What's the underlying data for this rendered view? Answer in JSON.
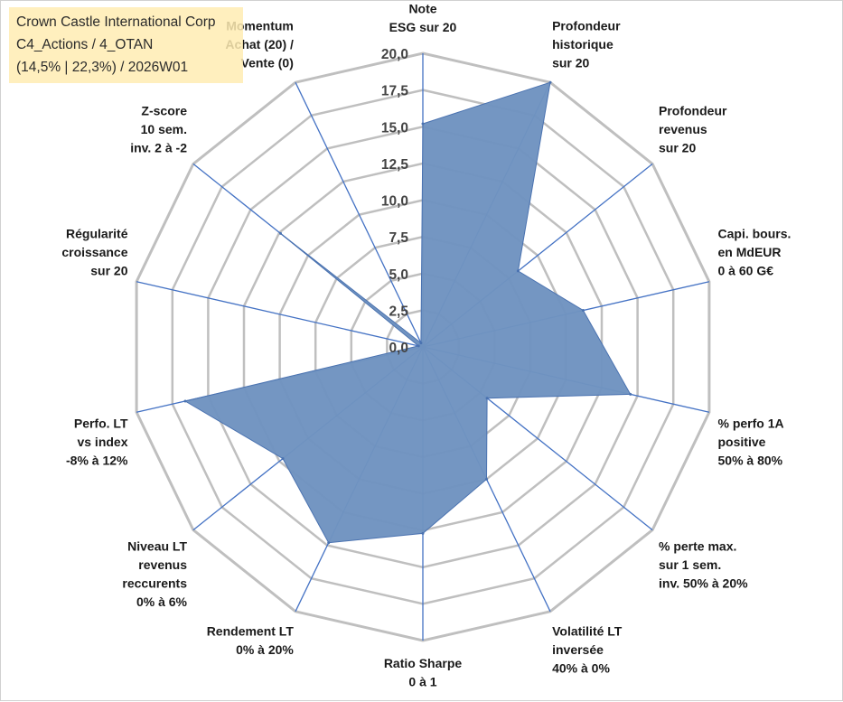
{
  "title_box": {
    "line1": "Crown Castle International Corp",
    "line2": "C4_Actions / 4_OTAN",
    "line3": "(14,5% | 22,3%) / 2026W01"
  },
  "colors": {
    "fill": "#6f93c0",
    "stroke": "#4a72b0",
    "axis": "#4472c4",
    "grid": "#bfbfbf",
    "title_bg": "#ffecb3"
  },
  "chart_data": {
    "type": "radar",
    "title": "Crown Castle International Corp",
    "rlim": [
      0,
      20
    ],
    "ticks": [
      0,
      2.5,
      5,
      7.5,
      10,
      12.5,
      15,
      17.5,
      20
    ],
    "tick_labels": [
      "0,0",
      "2,5",
      "5,0",
      "7,5",
      "10,0",
      "12,5",
      "15,0",
      "17,5",
      "20,0"
    ],
    "axes": [
      {
        "name": "Note ESG sur 20",
        "lines": [
          "Note",
          "ESG sur 20"
        ],
        "value": 15.2
      },
      {
        "name": "Profondeur historique sur 20",
        "lines": [
          "Profondeur",
          "historique",
          "sur 20"
        ],
        "value": 20.0
      },
      {
        "name": "Profondeur revenus sur 20",
        "lines": [
          "Profondeur",
          "revenus",
          "sur 20"
        ],
        "value": 8.3
      },
      {
        "name": "Capi. bours. en MdEUR 0 à 60 G€",
        "lines": [
          "Capi. bours.",
          "en MdEUR",
          "0 à 60 G€"
        ],
        "value": 11.2
      },
      {
        "name": "% perfo 1A positive 50% à 80%",
        "lines": [
          "% perfo 1A",
          "positive",
          "50% à 80%"
        ],
        "value": 14.5
      },
      {
        "name": "% perte max. sur 1 sem. inv. 50% à 20%",
        "lines": [
          "% perte max.",
          "sur 1 sem.",
          "inv. 50% à 20%"
        ],
        "value": 5.6
      },
      {
        "name": "Volatilité LT inversée 40% à 0%",
        "lines": [
          "Volatilité LT",
          "inversée",
          "40% à 0%"
        ],
        "value": 10.0
      },
      {
        "name": "Ratio Sharpe 0 à 1",
        "lines": [
          "Ratio Sharpe",
          "0 à 1"
        ],
        "value": 12.7
      },
      {
        "name": "Rendement LT 0% à 20%",
        "lines": [
          "Rendement LT",
          "0% à 20%"
        ],
        "value": 14.8
      },
      {
        "name": "Niveau LT revenus reccurents 0% à 6%",
        "lines": [
          "Niveau LT",
          "revenus",
          "reccurents",
          "0% à 6%"
        ],
        "value": 12.2
      },
      {
        "name": "Perfo. LT vs index -8% à 12%",
        "lines": [
          "Perfo. LT",
          "vs index",
          "-8% à 12%"
        ],
        "value": 16.6
      },
      {
        "name": "Régularité croissance sur 20",
        "lines": [
          "Régularité",
          "croissance",
          "sur 20"
        ],
        "value": 0.3
      },
      {
        "name": "Z-score 10 sem. inv. 2 à -2",
        "lines": [
          "Z-score",
          "10 sem.",
          "inv. 2 à -2"
        ],
        "value": 12.4
      },
      {
        "name": "Momentum Achat (20) / Vente (0)",
        "lines": [
          "Momentum",
          "Achat (20) /",
          "Vente (0)"
        ],
        "value": 0.3
      }
    ]
  }
}
